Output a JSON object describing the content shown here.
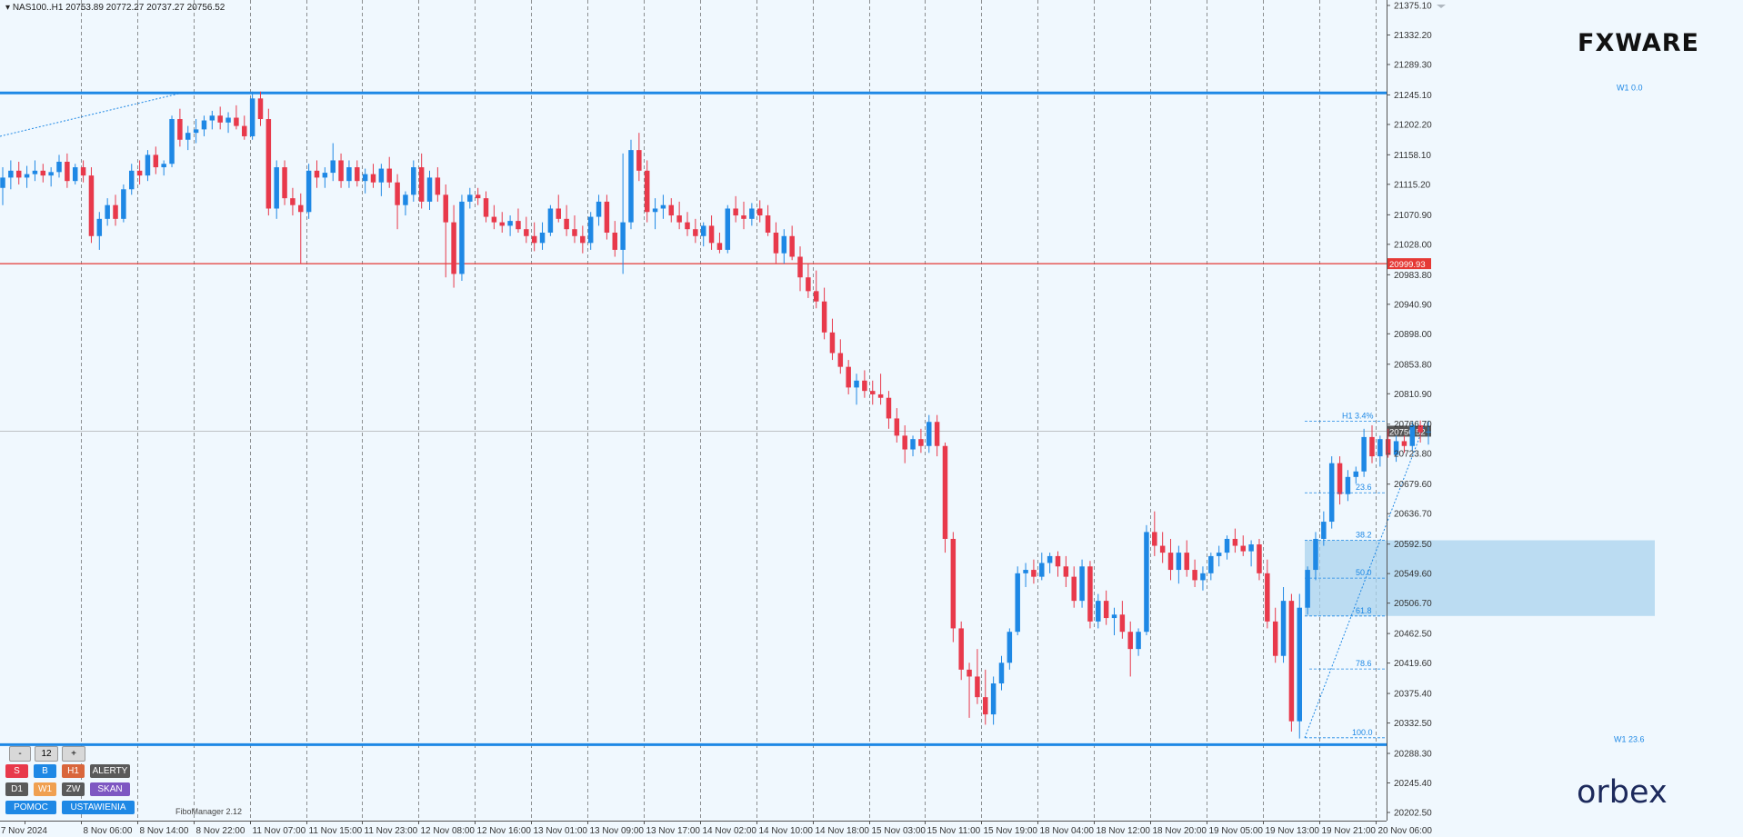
{
  "header": {
    "symbol_info": "NAS100..H1  20753.89 20772.27 20737.27 20756.52",
    "fxware_logo": "FXWARE",
    "orbex_logo": "orbex",
    "fibo_manager": "FiboManager 2.12"
  },
  "panel": {
    "minus": "-",
    "count": "12",
    "plus": "+",
    "s": "S",
    "b": "B",
    "h1": "H1",
    "alerty": "ALERTY",
    "d1": "D1",
    "w1": "W1",
    "zw": "ZW",
    "skan": "SKAN",
    "pomoc": "POMOC",
    "ustawienia": "USTAWIENIA"
  },
  "colors": {
    "background": "#f0f8fe",
    "bull": "#1e88e5",
    "bear": "#e8394b",
    "level_blue": "#1e88e5",
    "level_red": "#e53935",
    "fib_zone": "#a9d3ee"
  },
  "chart_data": {
    "type": "candlestick",
    "symbol": "NAS100..",
    "timeframe": "H1",
    "ohlc_last": {
      "open": 20753.89,
      "high": 20772.27,
      "low": 20737.27,
      "close": 20756.52
    },
    "y_ticks": [
      "21375.10",
      "21332.20",
      "21289.30",
      "21245.10",
      "21202.20",
      "21158.10",
      "21115.20",
      "21070.90",
      "21028.00",
      "20983.80",
      "20940.90",
      "20898.00",
      "20853.80",
      "20810.90",
      "20766.70",
      "20723.80",
      "20679.60",
      "20636.70",
      "20592.50",
      "20549.60",
      "20506.70",
      "20462.50",
      "20419.60",
      "20375.40",
      "20332.50",
      "20288.30",
      "20245.40",
      "20202.50"
    ],
    "ylim": [
      20202.5,
      21375.1
    ],
    "x_ticks": [
      "7 Nov 2024",
      "8 Nov 06:00",
      "8 Nov 14:00",
      "8 Nov 22:00",
      "11 Nov 07:00",
      "11 Nov 15:00",
      "11 Nov 23:00",
      "12 Nov 08:00",
      "12 Nov 16:00",
      "13 Nov 01:00",
      "13 Nov 09:00",
      "13 Nov 17:00",
      "14 Nov 02:00",
      "14 Nov 10:00",
      "14 Nov 18:00",
      "15 Nov 03:00",
      "15 Nov 11:00",
      "15 Nov 19:00",
      "18 Nov 04:00",
      "18 Nov 12:00",
      "18 Nov 20:00",
      "19 Nov 05:00",
      "19 Nov 13:00",
      "19 Nov 21:00",
      "20 Nov 06:00"
    ],
    "horizontal_levels": [
      {
        "price": 21248.0,
        "color": "#1e88e5",
        "label": "W1 0.0"
      },
      {
        "price": 20999.93,
        "color": "#e53935",
        "label": "20999.93"
      },
      {
        "price": 20301.0,
        "color": "#1e88e5",
        "label": "W1 23.6"
      }
    ],
    "current_price": "20756.52",
    "fibonacci": [
      {
        "label": "H1 3.4%",
        "price": 20771.0
      },
      {
        "label": "23.6",
        "price": 20667.0
      },
      {
        "label": "38.2",
        "price": 20598.0
      },
      {
        "label": "50.0",
        "price": 20543.0
      },
      {
        "label": "61.8",
        "price": 20488.0
      },
      {
        "label": "78.6",
        "price": 20411.0
      },
      {
        "label": "100.0",
        "price": 20311.0
      }
    ],
    "fib_zone": {
      "top": 20598.0,
      "bottom": 20488.0
    },
    "candles": [
      [
        21110,
        21140,
        21085,
        21125
      ],
      [
        21125,
        21150,
        21108,
        21135
      ],
      [
        21135,
        21148,
        21115,
        21125
      ],
      [
        21125,
        21142,
        21110,
        21130
      ],
      [
        21130,
        21150,
        21120,
        21135
      ],
      [
        21135,
        21145,
        21118,
        21128
      ],
      [
        21128,
        21140,
        21112,
        21133
      ],
      [
        21133,
        21158,
        21125,
        21148
      ],
      [
        21148,
        21160,
        21110,
        21120
      ],
      [
        21120,
        21145,
        21115,
        21140
      ],
      [
        21140,
        21150,
        21118,
        21128
      ],
      [
        21128,
        21140,
        21030,
        21040
      ],
      [
        21040,
        21075,
        21020,
        21065
      ],
      [
        21065,
        21095,
        21055,
        21085
      ],
      [
        21085,
        21100,
        21055,
        21065
      ],
      [
        21065,
        21115,
        21060,
        21108
      ],
      [
        21108,
        21145,
        21100,
        21135
      ],
      [
        21135,
        21150,
        21115,
        21128
      ],
      [
        21128,
        21165,
        21120,
        21158
      ],
      [
        21158,
        21170,
        21130,
        21140
      ],
      [
        21140,
        21150,
        21128,
        21145
      ],
      [
        21145,
        21215,
        21140,
        21210
      ],
      [
        21210,
        21225,
        21170,
        21180
      ],
      [
        21180,
        21200,
        21165,
        21190
      ],
      [
        21190,
        21210,
        21175,
        21195
      ],
      [
        21195,
        21215,
        21185,
        21208
      ],
      [
        21208,
        21222,
        21195,
        21215
      ],
      [
        21215,
        21228,
        21195,
        21205
      ],
      [
        21205,
        21220,
        21190,
        21212
      ],
      [
        21212,
        21230,
        21195,
        21200
      ],
      [
        21200,
        21215,
        21180,
        21185
      ],
      [
        21185,
        21250,
        21180,
        21240
      ],
      [
        21240,
        21250,
        21200,
        21210
      ],
      [
        21210,
        21225,
        21070,
        21080
      ],
      [
        21080,
        21150,
        21065,
        21140
      ],
      [
        21140,
        21150,
        21085,
        21095
      ],
      [
        21095,
        21110,
        21070,
        21085
      ],
      [
        21085,
        21102,
        21000,
        21075
      ],
      [
        21075,
        21145,
        21065,
        21135
      ],
      [
        21135,
        21150,
        21110,
        21125
      ],
      [
        21125,
        21140,
        21110,
        21132
      ],
      [
        21132,
        21175,
        21120,
        21150
      ],
      [
        21150,
        21160,
        21110,
        21120
      ],
      [
        21120,
        21150,
        21110,
        21140
      ],
      [
        21140,
        21150,
        21112,
        21120
      ],
      [
        21120,
        21138,
        21102,
        21130
      ],
      [
        21130,
        21145,
        21110,
        21118
      ],
      [
        21118,
        21145,
        21098,
        21138
      ],
      [
        21138,
        21155,
        21110,
        21118
      ],
      [
        21118,
        21130,
        21050,
        21085
      ],
      [
        21085,
        21105,
        21070,
        21100
      ],
      [
        21100,
        21150,
        21090,
        21140
      ],
      [
        21140,
        21160,
        21080,
        21090
      ],
      [
        21090,
        21135,
        21078,
        21125
      ],
      [
        21125,
        21140,
        21090,
        21100
      ],
      [
        21100,
        21115,
        20980,
        21060
      ],
      [
        21060,
        21085,
        20965,
        20985
      ],
      [
        20985,
        21100,
        20975,
        21090
      ],
      [
        21090,
        21110,
        21080,
        21100
      ],
      [
        21100,
        21110,
        21085,
        21095
      ],
      [
        21095,
        21105,
        21060,
        21068
      ],
      [
        21068,
        21085,
        21050,
        21060
      ],
      [
        21060,
        21075,
        21045,
        21055
      ],
      [
        21055,
        21070,
        21040,
        21062
      ],
      [
        21062,
        21080,
        21045,
        21050
      ],
      [
        21050,
        21068,
        21030,
        21040
      ],
      [
        21040,
        21060,
        21018,
        21030
      ],
      [
        21030,
        21060,
        21020,
        21045
      ],
      [
        21045,
        21085,
        21040,
        21080
      ],
      [
        21080,
        21100,
        21060,
        21065
      ],
      [
        21065,
        21085,
        21040,
        21050
      ],
      [
        21050,
        21070,
        21030,
        21040
      ],
      [
        21040,
        21055,
        21015,
        21030
      ],
      [
        21030,
        21075,
        21020,
        21068
      ],
      [
        21068,
        21100,
        21055,
        21090
      ],
      [
        21090,
        21100,
        21035,
        21045
      ],
      [
        21045,
        21062,
        21010,
        21020
      ],
      [
        21020,
        21160,
        20985,
        21060
      ],
      [
        21060,
        21180,
        21050,
        21165
      ],
      [
        21165,
        21190,
        21120,
        21135
      ],
      [
        21135,
        21150,
        21060,
        21075
      ],
      [
        21075,
        21095,
        21050,
        21080
      ],
      [
        21080,
        21100,
        21065,
        21085
      ],
      [
        21085,
        21095,
        21060,
        21070
      ],
      [
        21070,
        21090,
        21050,
        21060
      ],
      [
        21060,
        21075,
        21040,
        21050
      ],
      [
        21050,
        21065,
        21030,
        21040
      ],
      [
        21040,
        21060,
        21025,
        21055
      ],
      [
        21055,
        21070,
        21020,
        21030
      ],
      [
        21030,
        21045,
        21015,
        21020
      ],
      [
        21020,
        21085,
        21015,
        21080
      ],
      [
        21080,
        21098,
        21060,
        21070
      ],
      [
        21070,
        21090,
        21050,
        21065
      ],
      [
        21065,
        21088,
        21055,
        21080
      ],
      [
        21080,
        21092,
        21060,
        21070
      ],
      [
        21070,
        21085,
        21040,
        21045
      ],
      [
        21045,
        21060,
        21000,
        21015
      ],
      [
        21015,
        21050,
        21000,
        21040
      ],
      [
        21040,
        21055,
        21005,
        21010
      ],
      [
        21010,
        21025,
        20960,
        20980
      ],
      [
        20980,
        21000,
        20950,
        20960
      ],
      [
        20960,
        20990,
        20935,
        20945
      ],
      [
        20945,
        20965,
        20890,
        20900
      ],
      [
        20900,
        20920,
        20860,
        20870
      ],
      [
        20870,
        20890,
        20840,
        20850
      ],
      [
        20850,
        20860,
        20810,
        20820
      ],
      [
        20820,
        20840,
        20795,
        20830
      ],
      [
        20830,
        20845,
        20805,
        20815
      ],
      [
        20815,
        20830,
        20795,
        20810
      ],
      [
        20810,
        20840,
        20795,
        20805
      ],
      [
        20805,
        20815,
        20760,
        20775
      ],
      [
        20775,
        20790,
        20740,
        20750
      ],
      [
        20750,
        20765,
        20710,
        20730
      ],
      [
        20730,
        20750,
        20720,
        20745
      ],
      [
        20745,
        20760,
        20725,
        20735
      ],
      [
        20735,
        20780,
        20725,
        20770
      ],
      [
        20770,
        20780,
        20720,
        20735
      ],
      [
        20735,
        20740,
        20580,
        20600
      ],
      [
        20600,
        20610,
        20450,
        20470
      ],
      [
        20470,
        20480,
        20395,
        20410
      ],
      [
        20410,
        20420,
        20340,
        20400
      ],
      [
        20400,
        20440,
        20360,
        20370
      ],
      [
        20370,
        20410,
        20330,
        20345
      ],
      [
        20345,
        20400,
        20330,
        20390
      ],
      [
        20390,
        20430,
        20380,
        20420
      ],
      [
        20420,
        20470,
        20410,
        20465
      ],
      [
        20465,
        20560,
        20460,
        20550
      ],
      [
        20550,
        20565,
        20530,
        20555
      ],
      [
        20555,
        20570,
        20535,
        20545
      ],
      [
        20545,
        20580,
        20540,
        20565
      ],
      [
        20565,
        20580,
        20550,
        20575
      ],
      [
        20575,
        20582,
        20545,
        20560
      ],
      [
        20560,
        20575,
        20530,
        20545
      ],
      [
        20545,
        20560,
        20500,
        20510
      ],
      [
        20510,
        20570,
        20500,
        20560
      ],
      [
        20560,
        20568,
        20470,
        20480
      ],
      [
        20480,
        20520,
        20470,
        20510
      ],
      [
        20510,
        20525,
        20475,
        20485
      ],
      [
        20485,
        20500,
        20460,
        20490
      ],
      [
        20490,
        20510,
        20455,
        20465
      ],
      [
        20465,
        20480,
        20400,
        20440
      ],
      [
        20440,
        20470,
        20430,
        20465
      ],
      [
        20465,
        20620,
        20460,
        20610
      ],
      [
        20610,
        20640,
        20575,
        20590
      ],
      [
        20590,
        20610,
        20565,
        20580
      ],
      [
        20580,
        20600,
        20540,
        20555
      ],
      [
        20555,
        20590,
        20535,
        20580
      ],
      [
        20580,
        20598,
        20545,
        20555
      ],
      [
        20555,
        20570,
        20530,
        20540
      ],
      [
        20540,
        20560,
        20525,
        20550
      ],
      [
        20550,
        20580,
        20540,
        20575
      ],
      [
        20575,
        20590,
        20560,
        20580
      ],
      [
        20580,
        20605,
        20570,
        20600
      ],
      [
        20600,
        20615,
        20580,
        20590
      ],
      [
        20590,
        20605,
        20575,
        20582
      ],
      [
        20582,
        20598,
        20560,
        20592
      ],
      [
        20592,
        20600,
        20540,
        20550
      ],
      [
        20550,
        20570,
        20470,
        20480
      ],
      [
        20480,
        20500,
        20420,
        20430
      ],
      [
        20430,
        20530,
        20420,
        20510
      ],
      [
        20510,
        20520,
        20320,
        20335
      ],
      [
        20335,
        20520,
        20310,
        20500
      ],
      [
        20500,
        20560,
        20490,
        20555
      ],
      [
        20555,
        20610,
        20540,
        20600
      ],
      [
        20600,
        20640,
        20590,
        20625
      ],
      [
        20625,
        20720,
        20615,
        20710
      ],
      [
        20710,
        20720,
        20650,
        20665
      ],
      [
        20665,
        20700,
        20655,
        20690
      ],
      [
        20690,
        20705,
        20680,
        20698
      ],
      [
        20698,
        20760,
        20690,
        20748
      ],
      [
        20748,
        20765,
        20710,
        20720
      ],
      [
        20720,
        20750,
        20705,
        20745
      ],
      [
        20745,
        20760,
        20718,
        20722
      ],
      [
        20722,
        20750,
        20712,
        20742
      ],
      [
        20742,
        20750,
        20725,
        20735
      ],
      [
        20735,
        20770,
        20728,
        20765
      ],
      [
        20765,
        20772,
        20740,
        20755
      ],
      [
        20755,
        20772,
        20737,
        20756
      ]
    ]
  }
}
